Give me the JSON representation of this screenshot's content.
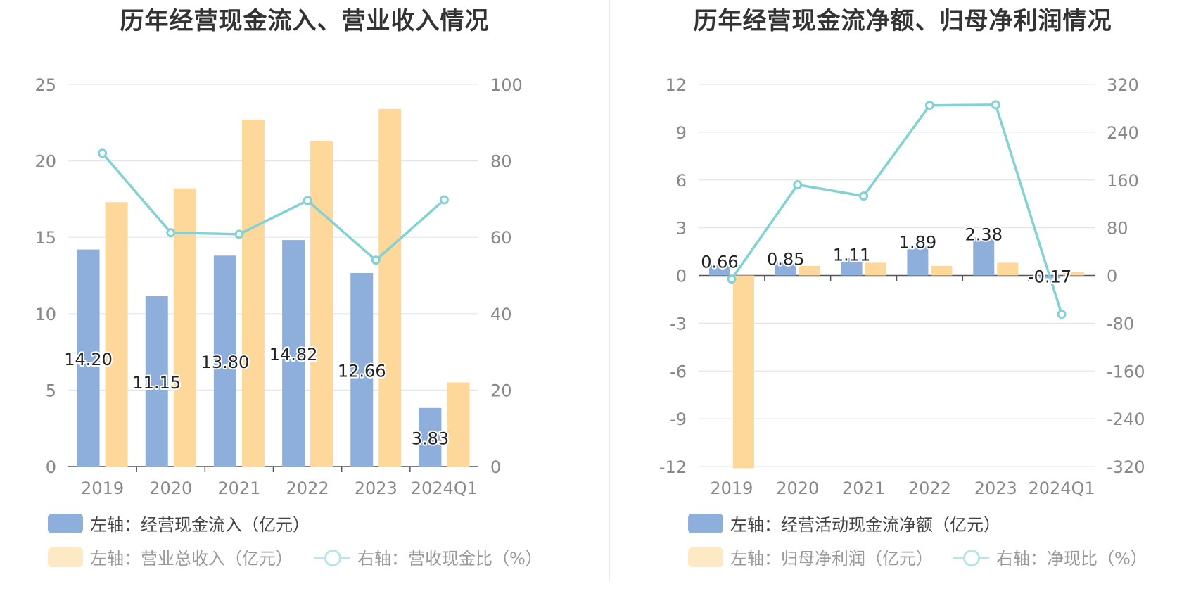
{
  "chart_data": [
    {
      "type": "bar",
      "title": "历年经营现金流入、营业收入情况",
      "categories": [
        "2019",
        "2020",
        "2021",
        "2022",
        "2023",
        "2024Q1"
      ],
      "left_axis": {
        "min": 0,
        "max": 25,
        "ticks": [
          "0",
          "5",
          "10",
          "15",
          "20",
          "25"
        ]
      },
      "right_axis": {
        "min": 0,
        "max": 100,
        "ticks": [
          "0",
          "20",
          "40",
          "60",
          "80",
          "100"
        ]
      },
      "series": [
        {
          "name": "左轴：经营现金流入（亿元）",
          "kind": "bar",
          "axis": "left",
          "color": "#8eafdc",
          "values": [
            14.2,
            11.15,
            13.8,
            14.82,
            12.66,
            3.83
          ],
          "labels": [
            "14.20",
            "11.15",
            "13.80",
            "14.82",
            "12.66",
            "3.83"
          ]
        },
        {
          "name": "左轴：营业总收入（亿元）",
          "kind": "bar",
          "axis": "left",
          "color": "#fdd89a",
          "values": [
            17.3,
            18.2,
            22.7,
            21.3,
            23.4,
            5.5
          ]
        },
        {
          "name": "右轴：营收现金比（%）",
          "kind": "line",
          "axis": "right",
          "color": "#82d2d4",
          "values": [
            82,
            61.2,
            60.8,
            69.6,
            54,
            69.8
          ]
        }
      ]
    },
    {
      "type": "bar",
      "title": "历年经营现金流净额、归母净利润情况",
      "categories": [
        "2019",
        "2020",
        "2021",
        "2022",
        "2023",
        "2024Q1"
      ],
      "left_axis": {
        "min": -12,
        "max": 12,
        "ticks": [
          "-12",
          "-9",
          "-6",
          "-3",
          "0",
          "3",
          "6",
          "9",
          "12"
        ]
      },
      "right_axis": {
        "min": -320,
        "max": 320,
        "ticks": [
          "-320",
          "-240",
          "-160",
          "-80",
          "0",
          "80",
          "160",
          "240",
          "320"
        ]
      },
      "series": [
        {
          "name": "左轴：经营活动现金流净额（亿元）",
          "kind": "bar",
          "axis": "left",
          "color": "#8eafdc",
          "values": [
            0.66,
            0.85,
            1.11,
            1.89,
            2.38,
            -0.17
          ],
          "labels": [
            "0.66",
            "0.85",
            "1.11",
            "1.89",
            "2.38",
            "-0.17"
          ]
        },
        {
          "name": "左轴：归母净利润（亿元）",
          "kind": "bar",
          "axis": "left",
          "color": "#fdd89a",
          "values": [
            -12.1,
            0.6,
            0.8,
            0.6,
            0.8,
            0.2
          ]
        },
        {
          "name": "右轴：净现比（%）",
          "kind": "line",
          "axis": "right",
          "color": "#82d2d4",
          "values": [
            -6,
            152,
            133,
            285,
            286,
            -65
          ]
        }
      ]
    }
  ]
}
